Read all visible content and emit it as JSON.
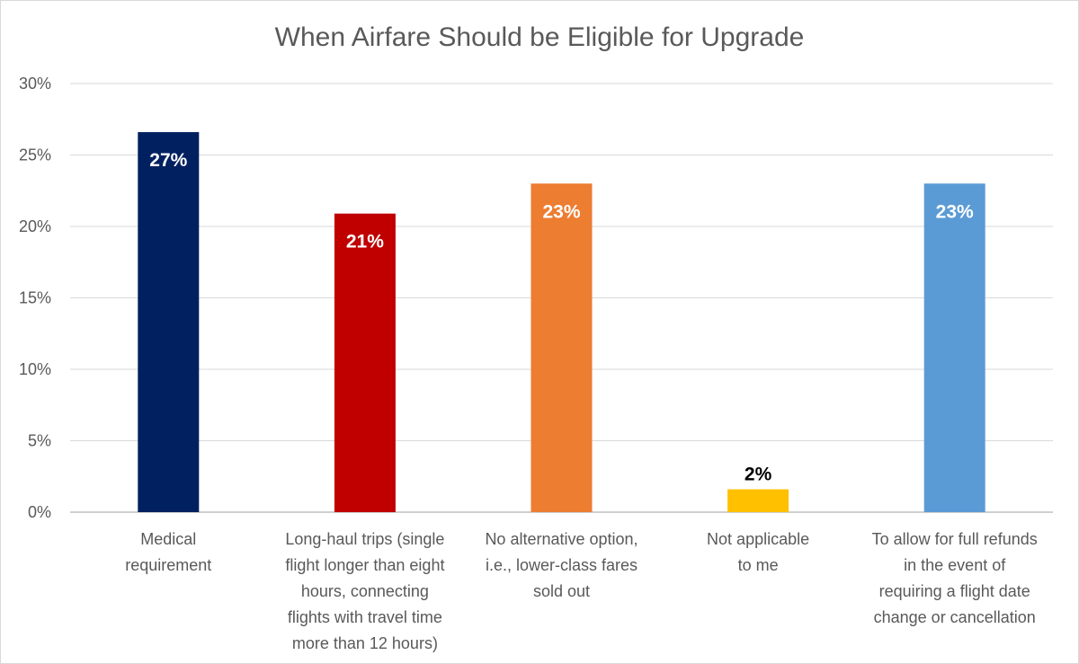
{
  "chart_data": {
    "type": "bar",
    "title": "When Airfare Should be Eligible for Upgrade",
    "xlabel": "",
    "ylabel": "",
    "ylim": [
      0,
      30
    ],
    "yticks": [
      "0%",
      "5%",
      "10%",
      "15%",
      "20%",
      "25%",
      "30%"
    ],
    "ytick_values": [
      0,
      5,
      10,
      15,
      20,
      25,
      30
    ],
    "grid": true,
    "legend": "none",
    "categories": [
      "Medical requirement",
      "Long-haul trips (single flight longer than eight hours, connecting flights with travel time more than 12 hours)",
      "No alternative option, i.e., lower-class fares sold out",
      "Not applicable to me",
      "To allow for full refunds in the event of requiring a flight date change or cancellation"
    ],
    "category_lines": [
      [
        "Medical",
        "requirement"
      ],
      [
        "Long-haul trips (single",
        "flight longer than eight",
        "hours, connecting",
        "flights with travel time",
        "more than 12 hours)"
      ],
      [
        "No alternative option,",
        "i.e., lower-class fares",
        "sold out"
      ],
      [
        "Not applicable",
        "to me"
      ],
      [
        "To allow for full refunds",
        "in the event of",
        "requiring a flight date",
        "change or cancellation"
      ]
    ],
    "values": [
      26.6,
      20.9,
      23.0,
      1.6,
      23.0
    ],
    "data_labels": [
      "27%",
      "21%",
      "23%",
      "2%",
      "23%"
    ],
    "colors": [
      "#002060",
      "#c00000",
      "#ed7d31",
      "#ffc000",
      "#5b9bd5"
    ],
    "label_colors": [
      "#ffffff",
      "#ffffff",
      "#ffffff",
      "#000000",
      "#ffffff"
    ],
    "grid_color": "#d9d9d9",
    "axis_color": "#bfbfbf"
  }
}
